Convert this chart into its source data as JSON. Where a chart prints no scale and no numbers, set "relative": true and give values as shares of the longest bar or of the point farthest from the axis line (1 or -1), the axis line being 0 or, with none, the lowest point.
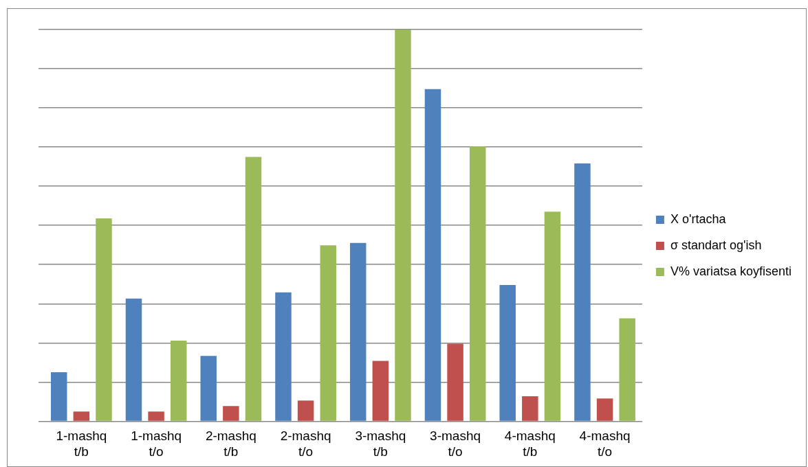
{
  "chart_data": {
    "type": "bar",
    "relative": true,
    "grid": "y",
    "legend": "right",
    "categories": [
      "1-mashq t/b",
      "1-mashq t/o",
      "2-mashq t/b",
      "2-mashq t/o",
      "3-mashq t/b",
      "3-mashq t/o",
      "4-mashq t/b",
      "4-mashq t/o"
    ],
    "series": [
      {
        "name": "X o'rtacha",
        "color": "#4f81bd",
        "values": [
          0.125,
          0.313,
          0.167,
          0.329,
          0.455,
          0.848,
          0.348,
          0.658
        ]
      },
      {
        "name": "σ standart og'ish",
        "color": "#c0504d",
        "values": [
          0.025,
          0.025,
          0.039,
          0.053,
          0.154,
          0.198,
          0.064,
          0.058
        ]
      },
      {
        "name": "V% variatsa koyfisenti",
        "color": "#9bbb59",
        "values": [
          0.518,
          0.206,
          0.675,
          0.449,
          1,
          0.702,
          0.535,
          0.263
        ]
      }
    ]
  }
}
